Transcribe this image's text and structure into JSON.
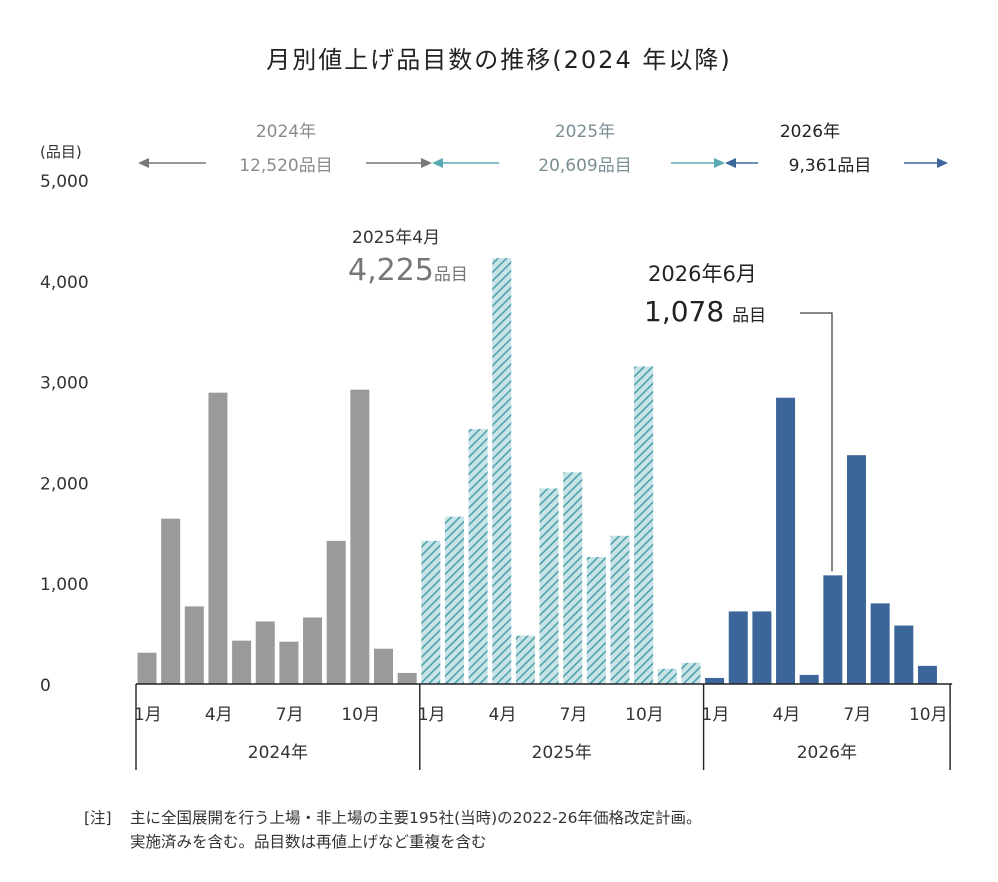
{
  "chart_data": {
    "type": "bar",
    "title": "月別値上げ品目数の推移(2024 年以降)",
    "ylabel": "(品目)",
    "ylim": [
      0,
      5000
    ],
    "yticks": [
      "0",
      "1,000",
      "2,000",
      "3,000",
      "4,000",
      "5,000"
    ],
    "x_month_labels": [
      "1月",
      "4月",
      "7月",
      "10月"
    ],
    "series": [
      {
        "name": "2024年",
        "total": "12,520品目",
        "color": "#9a9a9a",
        "pattern": "solid",
        "values": [
          310,
          1640,
          770,
          2890,
          430,
          620,
          420,
          660,
          1420,
          2920,
          350,
          110
        ]
      },
      {
        "name": "2025年",
        "total": "20,609品目",
        "color": "#5aaab3",
        "pattern": "hatched",
        "values": [
          1420,
          1660,
          2530,
          4225,
          480,
          1940,
          2100,
          1260,
          1470,
          3150,
          150,
          210
        ]
      },
      {
        "name": "2026年",
        "total": "9,361品目",
        "color": "#3c6699",
        "pattern": "solid",
        "values": [
          60,
          720,
          720,
          2840,
          90,
          1078,
          2270,
          800,
          580,
          180
        ]
      }
    ],
    "annotations": [
      {
        "label": "2025年4月",
        "value": "4,225",
        "unit": "品目",
        "series": 1,
        "month": 4
      },
      {
        "label": "2026年6月",
        "value": "1,078",
        "unit": "品目",
        "series": 2,
        "month": 6
      }
    ]
  },
  "note": {
    "tag": "[注]",
    "line1": "主に全国展開を行う上場・非上場の主要195社(当時)の2022-26年価格改定計画。",
    "line2": "実施済みを含む。品目数は再値上げなど重複を含む"
  }
}
